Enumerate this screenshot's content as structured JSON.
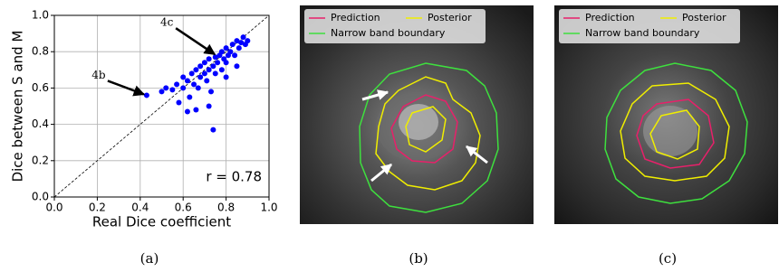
{
  "chart_data": {
    "type": "scatter",
    "caption": "(a)",
    "xlabel": "Real Dice coefficient",
    "ylabel": "Dice between S and M",
    "xlim": [
      0,
      1
    ],
    "ylim": [
      0,
      1
    ],
    "xticks": [
      {
        "value": 0,
        "label": "0.0"
      },
      0.2,
      0.4,
      0.6,
      0.8,
      {
        "value": 1,
        "label": "1.0"
      }
    ],
    "yticks": [
      {
        "value": 0,
        "label": "0.0"
      },
      0.2,
      0.4,
      0.6,
      0.8,
      {
        "value": 1,
        "label": "1.0"
      }
    ],
    "grid": true,
    "color": "#0000ff",
    "x": [
      0.43,
      0.5,
      0.52,
      0.55,
      0.57,
      0.58,
      0.6,
      0.6,
      0.62,
      0.63,
      0.64,
      0.65,
      0.66,
      0.67,
      0.68,
      0.68,
      0.7,
      0.7,
      0.71,
      0.72,
      0.72,
      0.73,
      0.74,
      0.75,
      0.75,
      0.76,
      0.77,
      0.78,
      0.78,
      0.79,
      0.8,
      0.8,
      0.81,
      0.82,
      0.83,
      0.84,
      0.85,
      0.86,
      0.87,
      0.88,
      0.89,
      0.9,
      0.72,
      0.66,
      0.8,
      0.74,
      0.85,
      0.62
    ],
    "values": [
      0.56,
      0.58,
      0.6,
      0.59,
      0.62,
      0.52,
      0.6,
      0.66,
      0.64,
      0.55,
      0.68,
      0.62,
      0.7,
      0.6,
      0.66,
      0.72,
      0.68,
      0.74,
      0.64,
      0.7,
      0.76,
      0.58,
      0.72,
      0.68,
      0.77,
      0.74,
      0.78,
      0.7,
      0.8,
      0.76,
      0.82,
      0.74,
      0.78,
      0.8,
      0.84,
      0.78,
      0.86,
      0.82,
      0.85,
      0.88,
      0.84,
      0.86,
      0.5,
      0.48,
      0.66,
      0.37,
      0.72,
      0.47
    ],
    "annotations": [
      {
        "text": "4b",
        "xy": [
          0.43,
          0.56
        ]
      },
      {
        "text": "4c",
        "xy": [
          0.76,
          0.78
        ]
      },
      {
        "text": "r = 0.78"
      }
    ]
  },
  "images": [
    {
      "caption": "(b)",
      "legend": [
        {
          "name": "Prediction",
          "color": "#e8206a"
        },
        {
          "name": "Posterior",
          "color": "#f0ee00"
        },
        {
          "name": "Narrow band boundary",
          "color": "#3ee03e"
        }
      ]
    },
    {
      "caption": "(c)",
      "legend": [
        {
          "name": "Prediction",
          "color": "#e8206a"
        },
        {
          "name": "Posterior",
          "color": "#f0ee00"
        },
        {
          "name": "Narrow band boundary",
          "color": "#3ee03e"
        }
      ]
    }
  ]
}
